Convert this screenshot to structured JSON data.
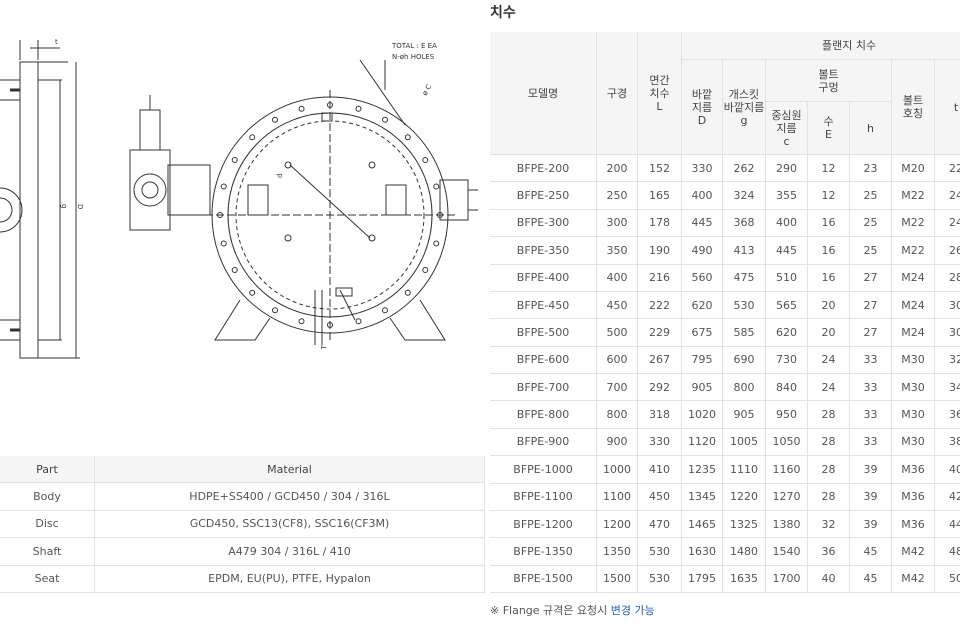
{
  "drawing": {
    "labels": [
      "t",
      "g",
      "D",
      "TOTAL : E EA",
      "N-øh HOLES",
      "ø C",
      "d",
      "T"
    ]
  },
  "material_table": {
    "headers": [
      "Part",
      "Material"
    ],
    "rows": [
      [
        "Body",
        "HDPE+SS400 / GCD450 / 304 / 316L"
      ],
      [
        "Disc",
        "GCD450, SSC13(CF8), SSC16(CF3M)"
      ],
      [
        "Shaft",
        "A479 304 / 316L / 410"
      ],
      [
        "Seat",
        "EPDM, EU(PU), PTFE, Hypalon"
      ]
    ]
  },
  "dimension_table": {
    "title": "치수",
    "headers": {
      "model": "모델명",
      "size": "구경",
      "length": "면간\n치수\nL",
      "flange": "플랜지 치수",
      "outer": "바깥\n지름\nD",
      "gasket": "개스킷\n바깥지름\ng",
      "bolt_hole": "볼트\n구멍",
      "pcd": "중심원\n지름\nc",
      "count": "수\nE",
      "h": "h",
      "bolt": "볼트\n호칭",
      "t": "t"
    },
    "rows": [
      [
        "BFPE-200",
        200,
        152,
        330,
        262,
        290,
        12,
        23,
        "M20",
        22
      ],
      [
        "BFPE-250",
        250,
        165,
        400,
        324,
        355,
        12,
        25,
        "M22",
        24
      ],
      [
        "BFPE-300",
        300,
        178,
        445,
        368,
        400,
        16,
        25,
        "M22",
        24
      ],
      [
        "BFPE-350",
        350,
        190,
        490,
        413,
        445,
        16,
        25,
        "M22",
        26
      ],
      [
        "BFPE-400",
        400,
        216,
        560,
        475,
        510,
        16,
        27,
        "M24",
        28
      ],
      [
        "BFPE-450",
        450,
        222,
        620,
        530,
        565,
        20,
        27,
        "M24",
        30
      ],
      [
        "BFPE-500",
        500,
        229,
        675,
        585,
        620,
        20,
        27,
        "M24",
        30
      ],
      [
        "BFPE-600",
        600,
        267,
        795,
        690,
        730,
        24,
        33,
        "M30",
        32
      ],
      [
        "BFPE-700",
        700,
        292,
        905,
        800,
        840,
        24,
        33,
        "M30",
        34
      ],
      [
        "BFPE-800",
        800,
        318,
        1020,
        905,
        950,
        28,
        33,
        "M30",
        36
      ],
      [
        "BFPE-900",
        900,
        330,
        1120,
        1005,
        1050,
        28,
        33,
        "M30",
        38
      ],
      [
        "BFPE-1000",
        1000,
        410,
        1235,
        1110,
        1160,
        28,
        39,
        "M36",
        40
      ],
      [
        "BFPE-1100",
        1100,
        450,
        1345,
        1220,
        1270,
        28,
        39,
        "M36",
        42
      ],
      [
        "BFPE-1200",
        1200,
        470,
        1465,
        1325,
        1380,
        32,
        39,
        "M36",
        44
      ],
      [
        "BFPE-1350",
        1350,
        530,
        1630,
        1480,
        1540,
        36,
        45,
        "M42",
        48
      ],
      [
        "BFPE-1500",
        1500,
        530,
        1795,
        1635,
        1700,
        40,
        45,
        "M42",
        50
      ]
    ]
  },
  "footnote": {
    "prefix": "※ Flange 규격은 요청시",
    "highlight": "변경 가능"
  }
}
